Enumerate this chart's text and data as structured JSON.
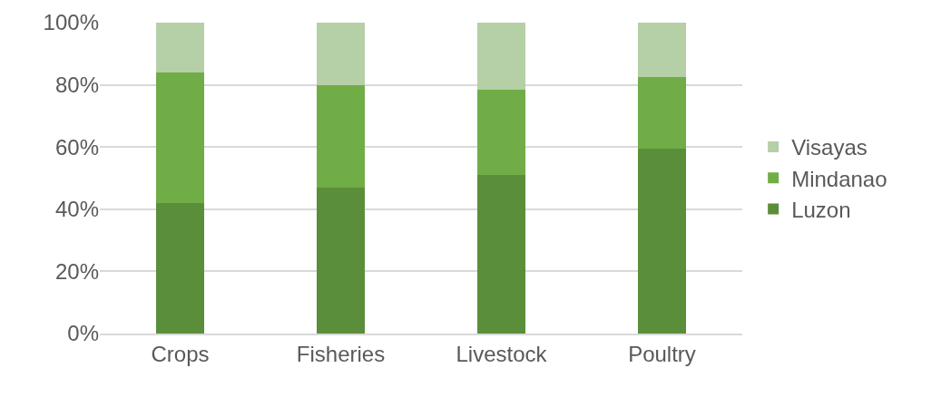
{
  "chart_data": {
    "type": "bar",
    "stacked": true,
    "categories": [
      "Crops",
      "Fisheries",
      "Livestock",
      "Poultry"
    ],
    "series": [
      {
        "name": "Luzon",
        "color": "#5b8e3a",
        "values": [
          42,
          47,
          51,
          59.5
        ]
      },
      {
        "name": "Mindanao",
        "color": "#70ad47",
        "values": [
          42,
          33,
          27.5,
          23
        ]
      },
      {
        "name": "Visayas",
        "color": "#b5cfa7",
        "values": [
          16,
          20,
          21.5,
          17.5
        ]
      }
    ],
    "ylim": [
      0,
      100
    ],
    "yticks": [
      {
        "value": 0,
        "label": "0%"
      },
      {
        "value": 20,
        "label": "20%"
      },
      {
        "value": 40,
        "label": "40%"
      },
      {
        "value": 60,
        "label": "60%"
      },
      {
        "value": 80,
        "label": "80%"
      },
      {
        "value": 100,
        "label": "100%"
      }
    ],
    "grid": "y",
    "legend": "right"
  }
}
